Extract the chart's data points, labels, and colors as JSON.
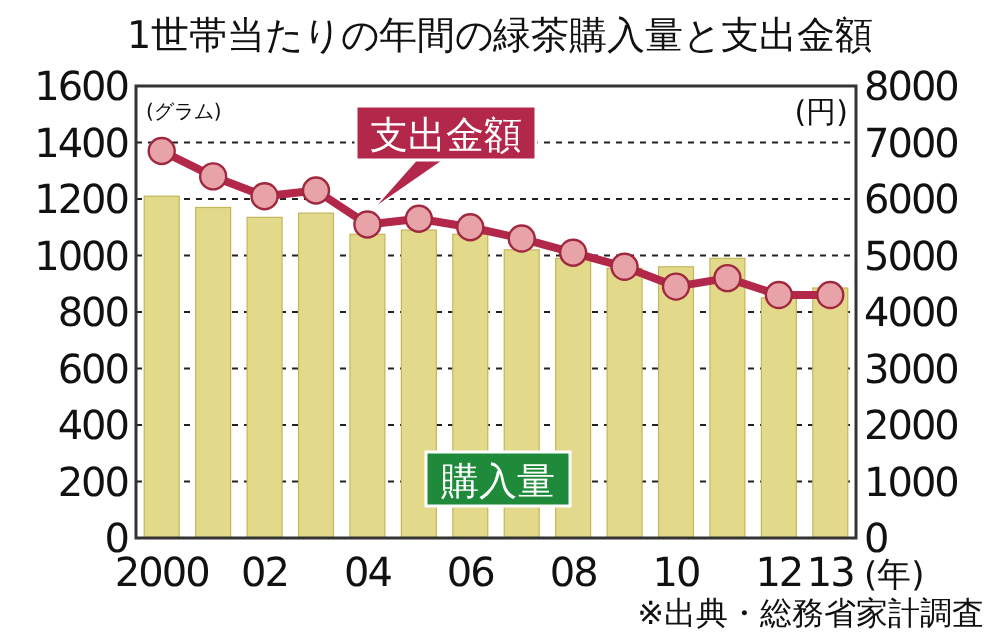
{
  "chart_data": {
    "type": "bar",
    "title": "1世帯当たりの年間の緑茶購入量と支出金額",
    "ylabel": "(グラム)",
    "y2label": "(円)",
    "xlabel": "(年)",
    "categories": [
      "2000",
      null,
      "02",
      null,
      "04",
      null,
      "06",
      null,
      "08",
      null,
      "10",
      null,
      "12",
      "13"
    ],
    "series": [
      {
        "name": "購入量",
        "color": "#e3d98a",
        "values": [
          1210,
          1170,
          1135,
          1150,
          1075,
          1090,
          1075,
          1020,
          990,
          955,
          960,
          990,
          850,
          885
        ]
      },
      {
        "name": "支出金額",
        "type": "line",
        "axis": "y2",
        "color": "#b3284a",
        "marker": "circle",
        "values": [
          6850,
          6400,
          6050,
          6150,
          5550,
          5650,
          5500,
          5300,
          5050,
          4800,
          4450,
          4600,
          4300,
          4300
        ]
      }
    ],
    "ylim": [
      0,
      1600
    ],
    "yticks": [
      0,
      200,
      400,
      600,
      800,
      1000,
      1200,
      1400,
      1600
    ],
    "y2lim": [
      0,
      8000
    ],
    "y2ticks": [
      0,
      1000,
      2000,
      3000,
      4000,
      5000,
      6000,
      7000,
      8000
    ],
    "grid": "y",
    "legend": false,
    "annotations": [
      "※出典・総務省家計調査"
    ]
  }
}
